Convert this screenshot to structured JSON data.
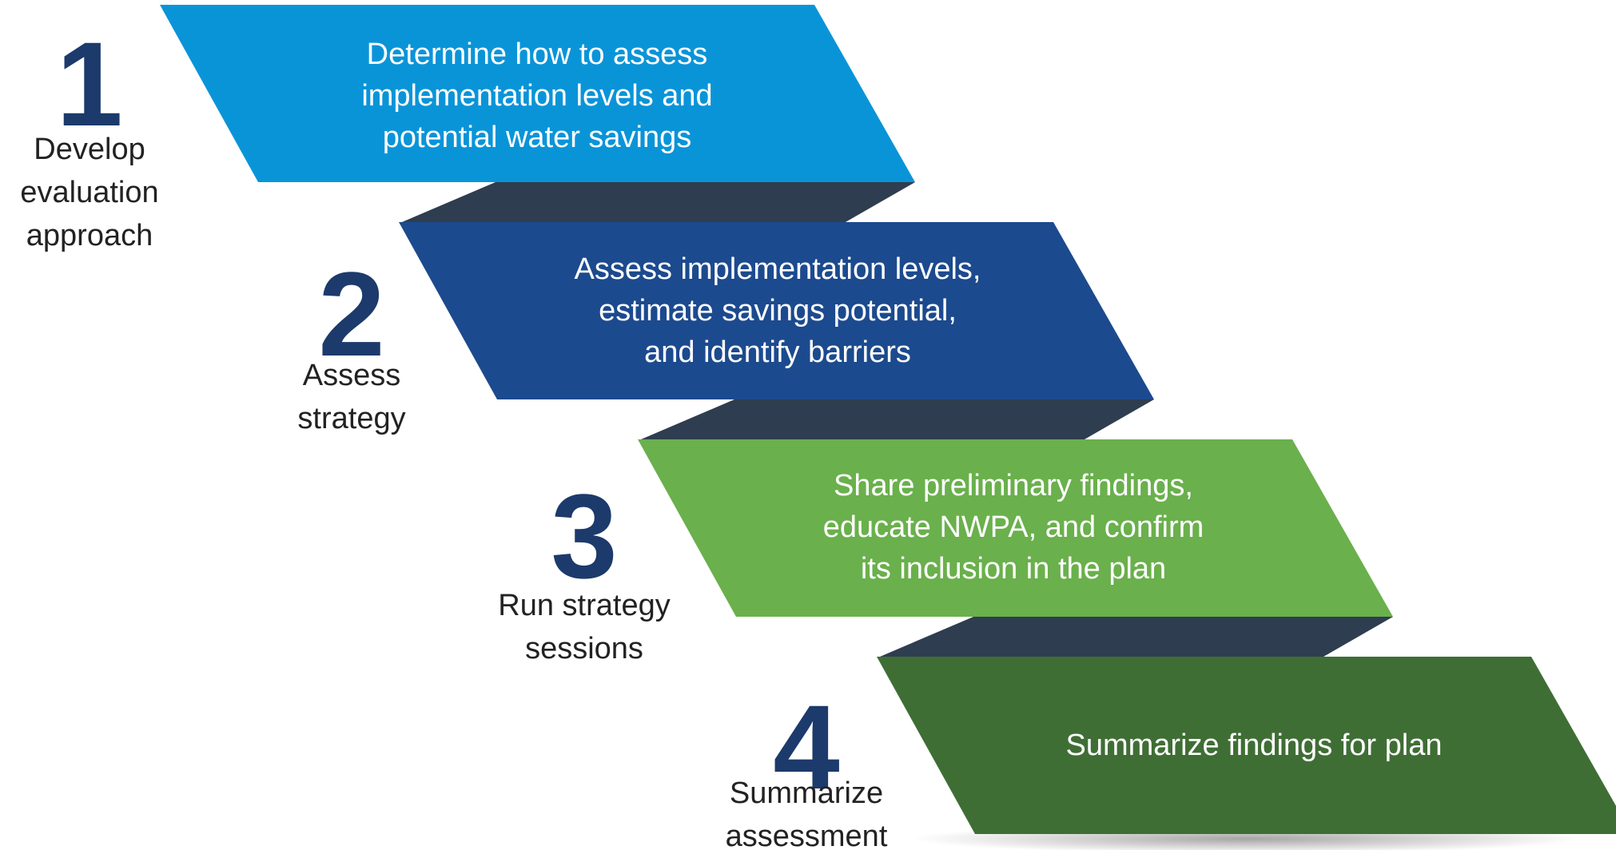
{
  "steps": [
    {
      "number": "1",
      "label": [
        "Develop",
        "evaluation",
        "approach"
      ],
      "text": [
        "Determine how to assess",
        "implementation levels and",
        "potential water savings"
      ]
    },
    {
      "number": "2",
      "label": [
        "Assess",
        "strategy"
      ],
      "text": [
        "Assess implementation levels,",
        "estimate savings potential,",
        "and identify barriers"
      ]
    },
    {
      "number": "3",
      "label": [
        "Run strategy",
        "sessions"
      ],
      "text": [
        "Share preliminary findings,",
        "educate NWPA, and confirm",
        "its inclusion in the plan"
      ]
    },
    {
      "number": "4",
      "label": [
        "Summarize",
        "assessment"
      ],
      "text": [
        "Summarize findings for plan"
      ]
    }
  ]
}
